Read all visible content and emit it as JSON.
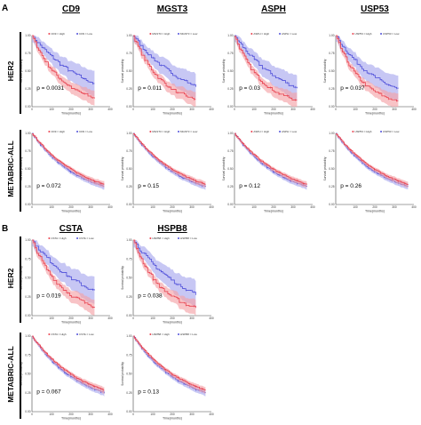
{
  "panels": [
    {
      "letter": "A",
      "genes": [
        "CD9",
        "MGST3",
        "ASPH",
        "USP53"
      ],
      "rows": [
        {
          "label": "HER2",
          "pvalues": [
            "p = 0.0031",
            "p = 0.011",
            "p = 0.03",
            "p = 0.037"
          ]
        },
        {
          "label": "METABRIC-ALL",
          "pvalues": [
            "p = 0.072",
            "p = 0.15",
            "p = 0.12",
            "p = 0.26"
          ]
        }
      ]
    },
    {
      "letter": "B",
      "genes": [
        "CSTA",
        "HSPB8"
      ],
      "rows": [
        {
          "label": "HER2",
          "pvalues": [
            "p = 0.019",
            "p = 0.038"
          ]
        },
        {
          "label": "METABRIC-ALL",
          "pvalues": [
            "p = 0.067",
            "p = 0.13"
          ]
        }
      ]
    }
  ],
  "axis": {
    "ylabel": "Survival probability",
    "xlabel": "Time(months)",
    "yticks": [
      "1.00",
      "0.75",
      "0.50",
      "0.25",
      "0.00"
    ],
    "xticks": [
      "0",
      "100",
      "200",
      "300",
      "400"
    ]
  },
  "legend_suffix": {
    "high": "High",
    "low": "Low"
  },
  "colors": {
    "high": "#e8414f",
    "high_band": "#f4a3a8",
    "low": "#4f4fd9",
    "low_band": "#a9a9ee"
  }
}
